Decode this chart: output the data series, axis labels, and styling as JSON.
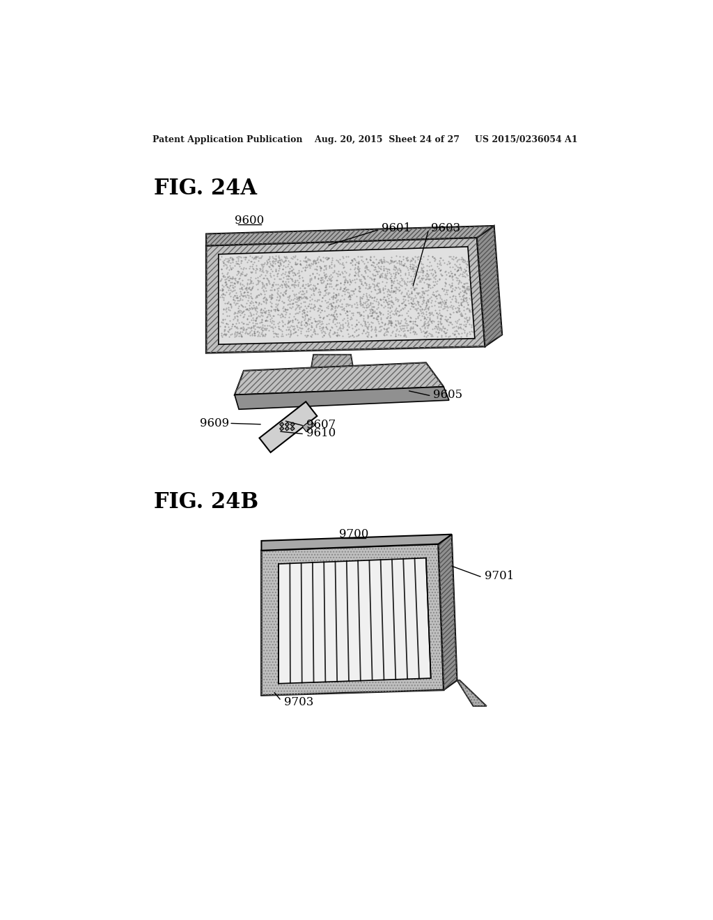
{
  "bg_color": "#ffffff",
  "header_text": "Patent Application Publication    Aug. 20, 2015  Sheet 24 of 27     US 2015/0236054 A1",
  "fig24a_label": "FIG. 24A",
  "fig24b_label": "FIG. 24B",
  "label_9600": "9600",
  "label_9601": "9601",
  "label_9603": "9603",
  "label_9605": "9605",
  "label_9607": "9607",
  "label_9609": "9609",
  "label_9610": "9610",
  "label_9700": "9700",
  "label_9701": "9701",
  "label_9703": "9703"
}
